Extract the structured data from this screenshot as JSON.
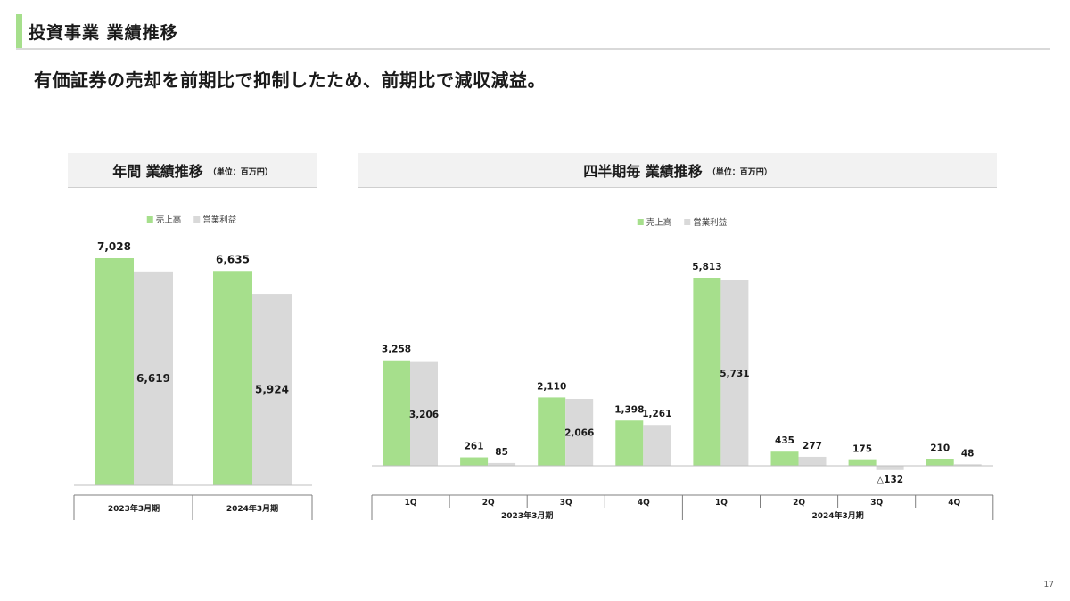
{
  "header": {
    "title": "投資事業 業績推移",
    "subtitle": "有価証券の売却を前期比で抑制したため、前期比で減収減益。"
  },
  "colors": {
    "accent": "#a6df8c",
    "sales": "#a6df8c",
    "profit": "#d9d9d9",
    "axis": "#bfbfbf"
  },
  "annual_panel": {
    "title": "年間 業績推移",
    "unit": "（単位：百万円）"
  },
  "quarterly_panel": {
    "title": "四半期毎 業績推移",
    "unit": "（単位：百万円）"
  },
  "page_number": "17",
  "chart_data": [
    {
      "type": "bar",
      "title": "年間 業績推移",
      "unit": "（単位：百万円）",
      "legend_position": "top-center",
      "categories": [
        "2023年3月期",
        "2024年3月期"
      ],
      "series": [
        {
          "name": "売上高",
          "values": [
            7028,
            6635
          ],
          "labels": [
            "7,028",
            "6,635"
          ]
        },
        {
          "name": "営業利益",
          "values": [
            6619,
            5924
          ],
          "labels": [
            "6,619",
            "5,924"
          ]
        }
      ],
      "ylim": [
        0,
        7028
      ],
      "grid": false
    },
    {
      "type": "bar",
      "title": "四半期毎 業績推移",
      "unit": "（単位：百万円）",
      "legend_position": "top-center",
      "categories": [
        "1Q",
        "2Q",
        "3Q",
        "4Q",
        "1Q",
        "2Q",
        "3Q",
        "4Q"
      ],
      "groups": [
        {
          "label": "2023年3月期",
          "span": 4
        },
        {
          "label": "2024年3月期",
          "span": 4
        }
      ],
      "series": [
        {
          "name": "売上高",
          "values": [
            3258,
            261,
            2110,
            1398,
            5813,
            435,
            175,
            210
          ],
          "labels": [
            "3,258",
            "261",
            "2,110",
            "1,398",
            "5,813",
            "435",
            "175",
            "210"
          ]
        },
        {
          "name": "営業利益",
          "values": [
            3206,
            85,
            2066,
            1261,
            5731,
            277,
            -132,
            48
          ],
          "labels": [
            "3,206",
            "85",
            "2,066",
            "1,261",
            "5,731",
            "277",
            "△132",
            "48"
          ]
        }
      ],
      "ylim": [
        -132,
        5813
      ],
      "grid": false
    }
  ]
}
